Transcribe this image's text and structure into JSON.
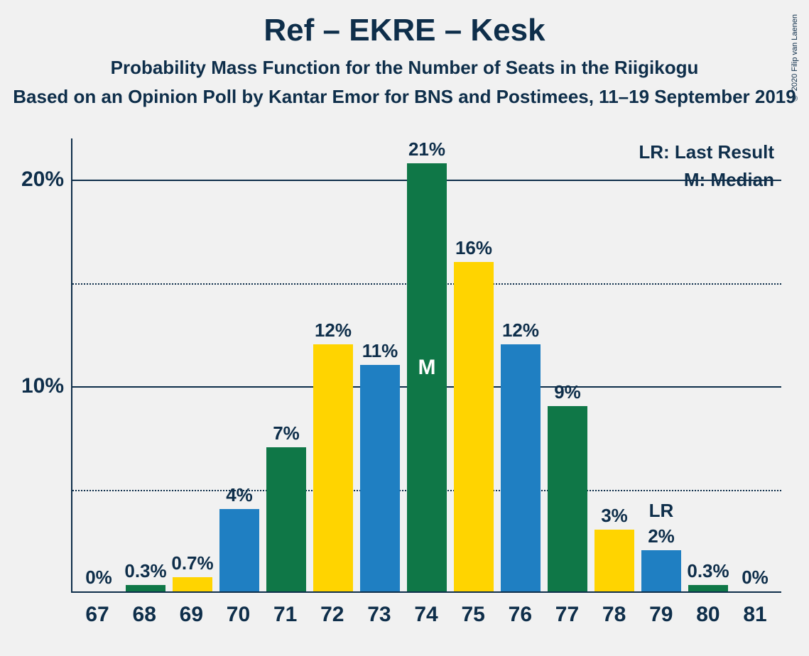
{
  "title": "Ref – EKRE – Kesk",
  "subtitle": "Probability Mass Function for the Number of Seats in the Riigikogu",
  "source": "Based on an Opinion Poll by Kantar Emor for BNS and Postimees, 11–19 September 2019",
  "copyright": "© 2020 Filip van Laenen",
  "legend": {
    "lr": "LR: Last Result",
    "m": "M: Median"
  },
  "chart": {
    "type": "bar",
    "ylim": [
      0,
      22
    ],
    "y_ticks": [
      {
        "value": 5,
        "label": "",
        "style": "dotted"
      },
      {
        "value": 10,
        "label": "10%",
        "style": "solid"
      },
      {
        "value": 15,
        "label": "",
        "style": "dotted"
      },
      {
        "value": 20,
        "label": "20%",
        "style": "solid"
      }
    ],
    "background_color": "#f1f1f1",
    "axis_color": "#0e2e4a",
    "text_color": "#0e2e4a",
    "colors": {
      "green": "#0f7747",
      "yellow": "#ffd400",
      "blue": "#1f7fc2"
    },
    "bars": [
      {
        "x": "67",
        "value": 0,
        "label": "0%",
        "color": "blue",
        "marker": "",
        "overlay": ""
      },
      {
        "x": "68",
        "value": 0.3,
        "label": "0.3%",
        "color": "green",
        "marker": "",
        "overlay": ""
      },
      {
        "x": "69",
        "value": 0.7,
        "label": "0.7%",
        "color": "yellow",
        "marker": "",
        "overlay": ""
      },
      {
        "x": "70",
        "value": 4,
        "label": "4%",
        "color": "blue",
        "marker": "",
        "overlay": ""
      },
      {
        "x": "71",
        "value": 7,
        "label": "7%",
        "color": "green",
        "marker": "",
        "overlay": ""
      },
      {
        "x": "72",
        "value": 12,
        "label": "12%",
        "color": "yellow",
        "marker": "",
        "overlay": ""
      },
      {
        "x": "73",
        "value": 11,
        "label": "11%",
        "color": "blue",
        "marker": "",
        "overlay": ""
      },
      {
        "x": "74",
        "value": 21,
        "label": "21%",
        "color": "green",
        "marker": "M",
        "overlay": ""
      },
      {
        "x": "75",
        "value": 16,
        "label": "16%",
        "color": "yellow",
        "marker": "",
        "overlay": ""
      },
      {
        "x": "76",
        "value": 12,
        "label": "12%",
        "color": "blue",
        "marker": "",
        "overlay": ""
      },
      {
        "x": "77",
        "value": 9,
        "label": "9%",
        "color": "green",
        "marker": "",
        "overlay": ""
      },
      {
        "x": "78",
        "value": 3,
        "label": "3%",
        "color": "yellow",
        "marker": "",
        "overlay": ""
      },
      {
        "x": "79",
        "value": 2,
        "label": "2%",
        "color": "blue",
        "marker": "",
        "overlay": "LR"
      },
      {
        "x": "80",
        "value": 0.3,
        "label": "0.3%",
        "color": "green",
        "marker": "",
        "overlay": ""
      },
      {
        "x": "81",
        "value": 0,
        "label": "0%",
        "color": "yellow",
        "marker": "",
        "overlay": ""
      }
    ]
  }
}
